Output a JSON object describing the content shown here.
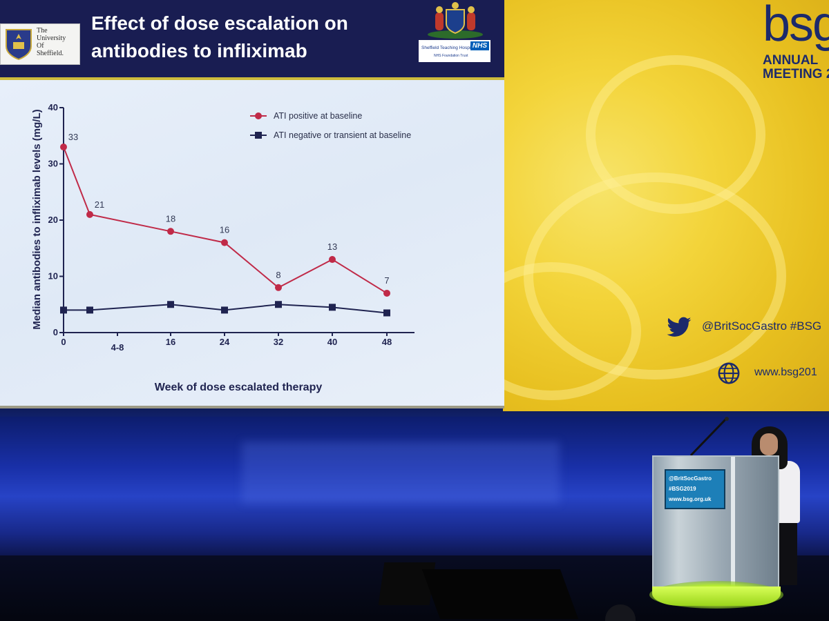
{
  "slide": {
    "title": "Effect of dose escalation on antibodies to infliximab",
    "university_logo_text": "The\nUniversity\nOf\nSheffield.",
    "nhs_trust_text": "Sheffield Teaching Hospitals",
    "nhs_badge": "NHS",
    "nhs_sub": "NHS Foundation Trust"
  },
  "chart_data": {
    "type": "line",
    "title": "",
    "xlabel": "Week of dose escalated therapy",
    "ylabel": "Median antibodies to infliximab levels (mg/L)",
    "ylim": [
      0,
      40
    ],
    "yticks": [
      0,
      10,
      20,
      30,
      40
    ],
    "x_tick_labels": [
      "0",
      "4-8",
      "16",
      "24",
      "32",
      "40",
      "48"
    ],
    "legend_position": "top-right",
    "series": [
      {
        "name": "ATI positive at baseline",
        "marker": "circle",
        "color": "#c02a48",
        "x": [
          0,
          4,
          16,
          24,
          32,
          40,
          48
        ],
        "values": [
          33,
          21,
          18,
          16,
          8,
          13,
          7
        ],
        "labels": [
          "33",
          "21",
          "18",
          "16",
          "8",
          "13",
          "7"
        ]
      },
      {
        "name": "ATI negative or transient at baseline",
        "marker": "square",
        "color": "#1f2350",
        "x": [
          0,
          4,
          16,
          24,
          32,
          40,
          48
        ],
        "values": [
          4,
          4,
          5,
          4,
          5,
          4.5,
          3.5
        ]
      }
    ]
  },
  "conference": {
    "logo": "bsg",
    "annual": "ANNUAL",
    "meeting": "MEETING 2",
    "twitter": "@BritSocGastro  #BSG",
    "website": "www.bsg201"
  },
  "lectern": {
    "line1": "@BritSocGastro",
    "line2": "#BSG2019",
    "line3": "www.bsg.org.uk"
  }
}
